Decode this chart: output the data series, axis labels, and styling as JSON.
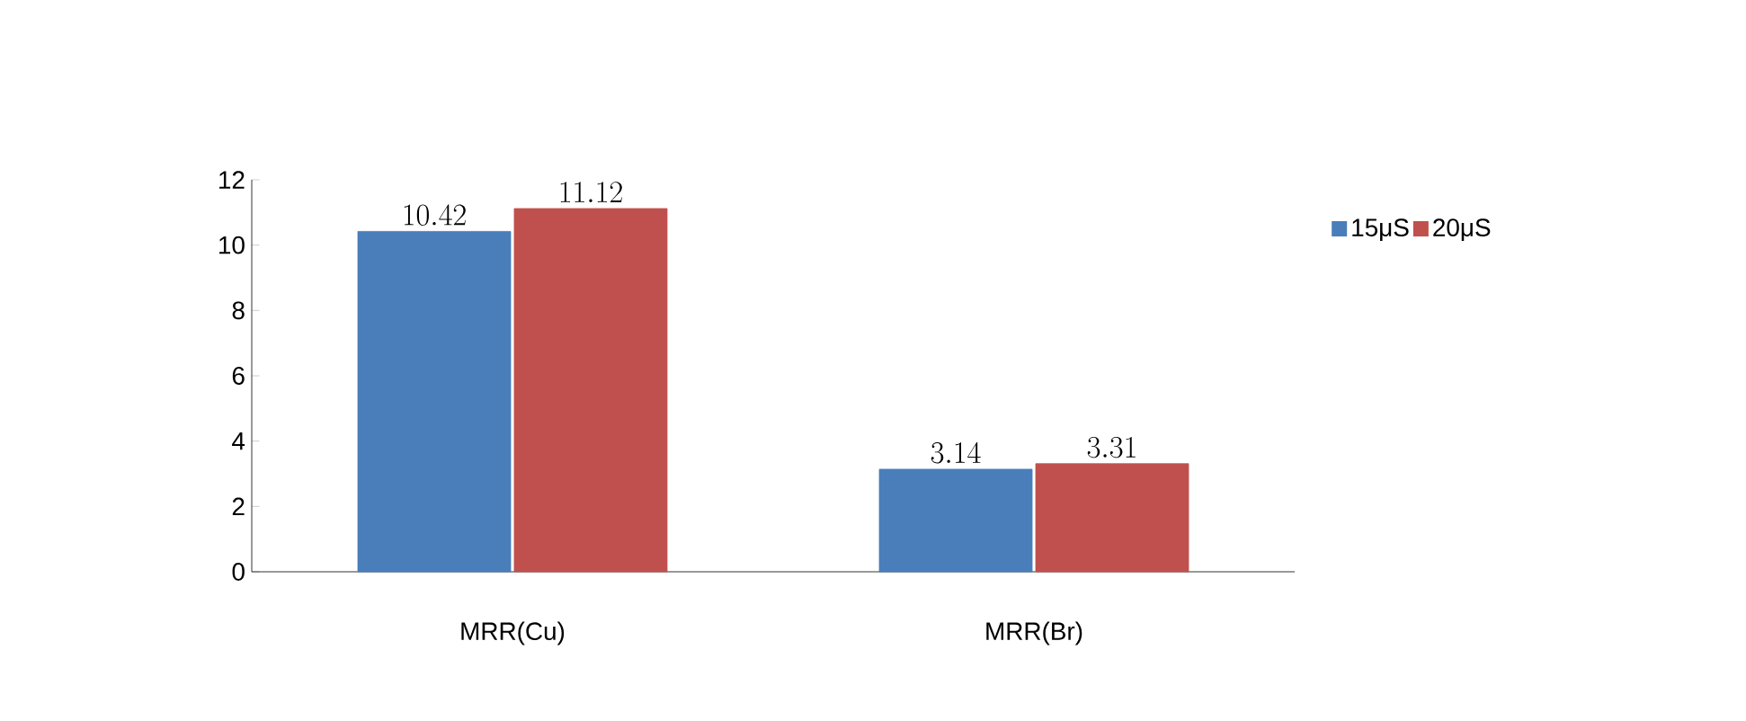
{
  "chart_data": {
    "type": "bar",
    "categories": [
      "MRR(Cu)",
      "MRR(Br)"
    ],
    "series": [
      {
        "name": "15μS",
        "color": "#4a7ebb",
        "values": [
          10.42,
          3.14
        ]
      },
      {
        "name": "20μS",
        "color": "#c0504d",
        "values": [
          11.12,
          3.31
        ]
      }
    ],
    "ylim": [
      0,
      12
    ],
    "yticks": [
      0,
      2,
      4,
      6,
      8,
      10,
      12
    ],
    "data_labels": true,
    "legend": "top right",
    "grid": false
  }
}
